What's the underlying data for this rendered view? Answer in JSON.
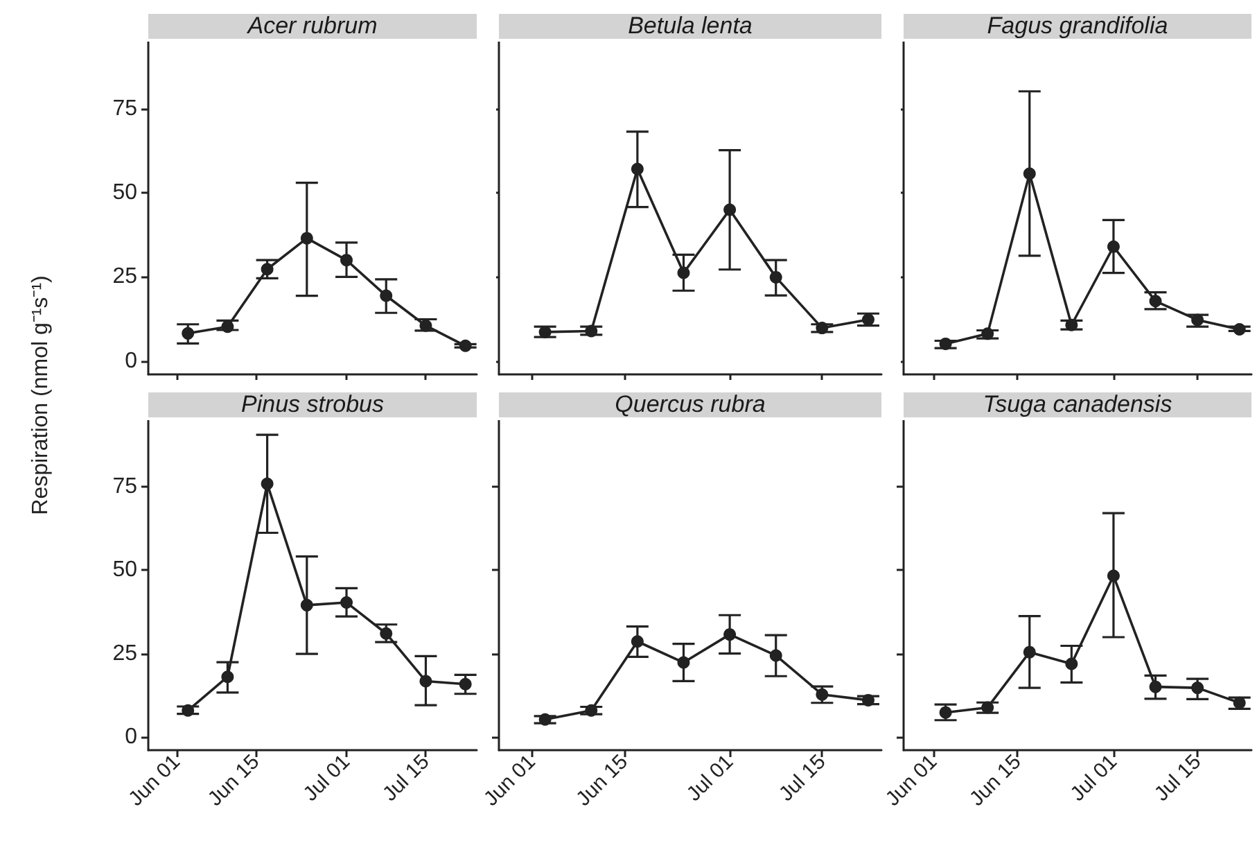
{
  "chart_data": [
    {
      "type": "line",
      "title": "Acer rubrum",
      "ylabel": "Respiration (nmol g⁻¹s⁻¹)",
      "x": [
        "--06-03",
        "--06-10",
        "--06-17",
        "--06-24",
        "--07-01",
        "--07-08",
        "--07-15",
        "--07-22"
      ],
      "values": [
        8.2,
        10.2,
        27.3,
        36.5,
        30.0,
        19.4,
        10.5,
        4.5
      ],
      "errors": [
        [
          5.2,
          10.9
        ],
        [
          9.2,
          12.0
        ],
        [
          24.6,
          30.0
        ],
        [
          19.4,
          53.0
        ],
        [
          25.0,
          35.2
        ],
        [
          14.3,
          24.3
        ],
        [
          9.0,
          12.4
        ],
        [
          4.0,
          5.0
        ]
      ],
      "color": "#222222",
      "marker": "circle",
      "xlim": [
        "--05-27",
        "--07-24"
      ],
      "xticks": [
        {
          "value": "--06-01",
          "label": "Jun 01"
        },
        {
          "value": "--06-15",
          "label": "Jun 15"
        },
        {
          "value": "--07-01",
          "label": "Jul 01"
        },
        {
          "value": "--07-15",
          "label": "Jul 15"
        }
      ],
      "ylim": [
        -4,
        95
      ],
      "yticks": [
        0,
        25,
        50,
        75
      ],
      "tick_labels": "y",
      "grid": false
    },
    {
      "type": "line",
      "title": "Betula lenta",
      "x": [
        "--06-03",
        "--06-10",
        "--06-17",
        "--06-24",
        "--07-01",
        "--07-08",
        "--07-15",
        "--07-22"
      ],
      "values": [
        8.6,
        8.9,
        57.1,
        26.2,
        45.0,
        24.9,
        9.8,
        12.3
      ],
      "errors": [
        [
          7.1,
          10.2
        ],
        [
          7.8,
          10.2
        ],
        [
          45.8,
          68.2
        ],
        [
          20.9,
          31.6
        ],
        [
          27.2,
          62.7
        ],
        [
          19.5,
          30.0
        ],
        [
          8.6,
          10.9
        ],
        [
          10.5,
          14.1
        ]
      ],
      "color": "#222222",
      "marker": "circle",
      "xlim": [
        "--05-27",
        "--07-24"
      ],
      "xticks": [
        {
          "value": "--06-01",
          "label": "Jun 01"
        },
        {
          "value": "--06-15",
          "label": "Jun 15"
        },
        {
          "value": "--07-01",
          "label": "Jul 01"
        },
        {
          "value": "--07-15",
          "label": "Jul 15"
        }
      ],
      "ylim": [
        -4,
        95
      ],
      "yticks": [
        0,
        25,
        50,
        75
      ],
      "tick_labels": false,
      "grid": false
    },
    {
      "type": "line",
      "title": "Fagus grandifolia",
      "x": [
        "--06-03",
        "--06-10",
        "--06-17",
        "--06-24",
        "--07-01",
        "--07-08",
        "--07-15",
        "--07-22"
      ],
      "values": [
        5.1,
        8.1,
        55.7,
        10.7,
        34.0,
        17.8,
        12.2,
        9.4
      ],
      "errors": [
        [
          3.8,
          6.0
        ],
        [
          6.7,
          9.1
        ],
        [
          31.3,
          80.2
        ],
        [
          9.4,
          12.0
        ],
        [
          26.2,
          41.9
        ],
        [
          15.4,
          20.4
        ],
        [
          10.2,
          13.7
        ],
        [
          8.9,
          10.2
        ]
      ],
      "color": "#222222",
      "marker": "circle",
      "xlim": [
        "--05-27",
        "--07-24"
      ],
      "xticks": [
        {
          "value": "--06-01",
          "label": "Jun 01"
        },
        {
          "value": "--06-15",
          "label": "Jun 15"
        },
        {
          "value": "--07-01",
          "label": "Jul 01"
        },
        {
          "value": "--07-15",
          "label": "Jul 15"
        }
      ],
      "ylim": [
        -4,
        95
      ],
      "yticks": [
        0,
        25,
        50,
        75
      ],
      "tick_labels": false,
      "grid": false
    },
    {
      "type": "line",
      "title": "Pinus strobus",
      "x": [
        "--06-03",
        "--06-10",
        "--06-17",
        "--06-24",
        "--07-01",
        "--07-08",
        "--07-15",
        "--07-22"
      ],
      "values": [
        7.9,
        18.0,
        75.9,
        39.5,
        40.3,
        31.0,
        16.7,
        15.8
      ],
      "errors": [
        [
          6.9,
          9.1
        ],
        [
          13.3,
          22.4
        ],
        [
          61.2,
          90.6
        ],
        [
          24.9,
          54.1
        ],
        [
          36.1,
          44.6
        ],
        [
          28.4,
          33.7
        ],
        [
          9.5,
          24.2
        ],
        [
          12.9,
          18.6
        ]
      ],
      "color": "#222222",
      "marker": "circle",
      "xlim": [
        "--05-27",
        "--07-24"
      ],
      "xticks": [
        {
          "value": "--06-01",
          "label": "Jun 01"
        },
        {
          "value": "--06-15",
          "label": "Jun 15"
        },
        {
          "value": "--07-01",
          "label": "Jul 01"
        },
        {
          "value": "--07-15",
          "label": "Jul 15"
        }
      ],
      "ylim": [
        -4,
        95
      ],
      "yticks": [
        0,
        25,
        50,
        75
      ],
      "grid": false
    },
    {
      "type": "line",
      "title": "Quercus rubra",
      "x": [
        "--06-03",
        "--06-10",
        "--06-17",
        "--06-24",
        "--07-01",
        "--07-08",
        "--07-15",
        "--07-22"
      ],
      "values": [
        5.2,
        7.9,
        28.6,
        22.3,
        30.7,
        24.4,
        12.7,
        11.0
      ],
      "errors": [
        [
          4.1,
          6.2
        ],
        [
          6.8,
          9.0
        ],
        [
          24.0,
          33.1
        ],
        [
          16.7,
          27.9
        ],
        [
          25.0,
          36.5
        ],
        [
          18.2,
          30.5
        ],
        [
          10.2,
          15.1
        ],
        [
          9.8,
          12.2
        ]
      ],
      "color": "#222222",
      "marker": "circle",
      "xlim": [
        "--05-27",
        "--07-24"
      ],
      "xticks": [
        {
          "value": "--06-01",
          "label": "Jun 01"
        },
        {
          "value": "--06-15",
          "label": "Jun 15"
        },
        {
          "value": "--07-01",
          "label": "Jul 01"
        },
        {
          "value": "--07-15",
          "label": "Jul 15"
        }
      ],
      "ylim": [
        -4,
        95
      ],
      "yticks": [
        0,
        25,
        50,
        75
      ],
      "tick_labels": "x",
      "grid": false
    },
    {
      "type": "line",
      "title": "Tsuga canadensis",
      "x": [
        "--06-03",
        "--06-10",
        "--06-17",
        "--06-24",
        "--07-01",
        "--07-08",
        "--07-15",
        "--07-22"
      ],
      "values": [
        7.3,
        8.8,
        25.4,
        21.9,
        48.3,
        15.0,
        14.7,
        10.2
      ],
      "errors": [
        [
          5.0,
          9.7
        ],
        [
          7.2,
          10.3
        ],
        [
          14.7,
          36.2
        ],
        [
          16.3,
          27.3
        ],
        [
          29.9,
          67.1
        ],
        [
          11.4,
          18.4
        ],
        [
          11.3,
          17.4
        ],
        [
          8.4,
          11.8
        ]
      ],
      "color": "#222222",
      "marker": "circle",
      "xlim": [
        "--05-27",
        "--07-24"
      ],
      "xticks": [
        {
          "value": "--06-01",
          "label": "Jun 01"
        },
        {
          "value": "--06-15",
          "label": "Jun 15"
        },
        {
          "value": "--07-01",
          "label": "Jul 01"
        },
        {
          "value": "--07-15",
          "label": "Jul 15"
        }
      ],
      "ylim": [
        -4,
        95
      ],
      "yticks": [
        0,
        25,
        50,
        75
      ],
      "tick_labels": "x",
      "grid": false
    }
  ]
}
